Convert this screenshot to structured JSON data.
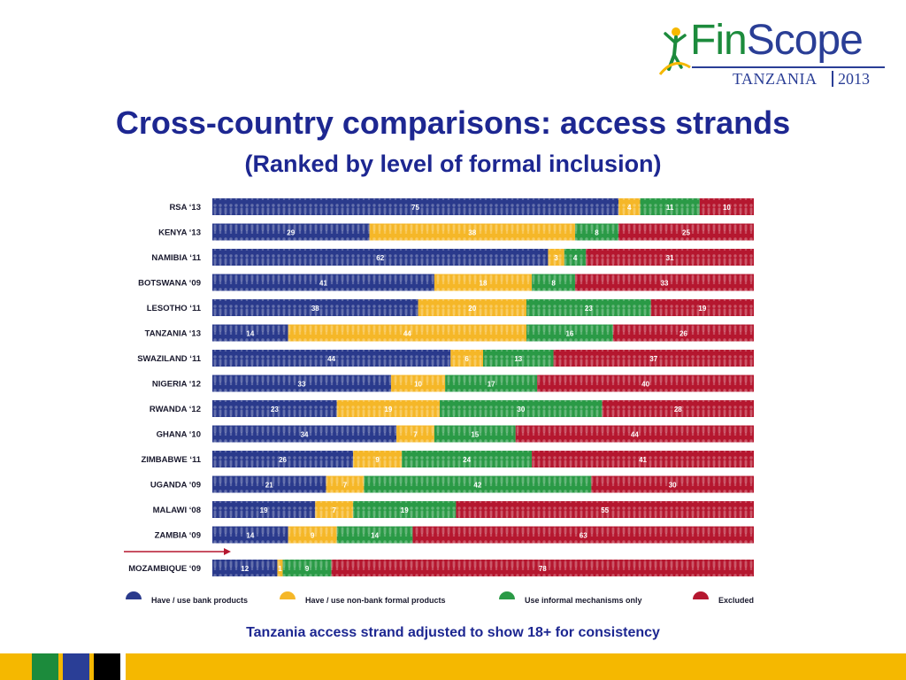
{
  "logo": {
    "word_part1": "Fin",
    "word_part2": "Scope",
    "country": "TANZANIA",
    "year": "2013"
  },
  "title": "Cross-country comparisons: access strands",
  "subtitle": "(Ranked by level of formal inclusion)",
  "note": "Tanzania access strand adjusted to show 18+ for consistency",
  "colors": {
    "bank": "#2a3a8c",
    "nonbank": "#f5b728",
    "informal": "#2a9a46",
    "excluded": "#b5172f",
    "title": "#1d2791",
    "footer_yellow": "#f5b800",
    "footer_green": "#1c8b3c",
    "footer_blue": "#2a3e96",
    "footer_black": "#000000"
  },
  "chart_data": {
    "type": "bar",
    "orientation": "horizontal-stacked-100",
    "categories": [
      "RSA ‘13",
      "KENYA ‘13",
      "NAMIBIA ‘11",
      "BOTSWANA ‘09",
      "LESOTHO ‘11",
      "TANZANIA ‘13",
      "SWAZILAND ‘11",
      "NIGERIA ‘12",
      "RWANDA ‘12",
      "GHANA ‘10",
      "ZIMBABWE ‘11",
      "UGANDA ‘09",
      "MALAWI ‘08",
      "ZAMBIA ‘09",
      "MOZAMBIQUE ‘09"
    ],
    "series": [
      {
        "name": "Have / use bank products",
        "values": [
          75,
          29,
          62,
          41,
          38,
          14,
          44,
          33,
          23,
          34,
          26,
          21,
          19,
          14,
          12
        ]
      },
      {
        "name": "Have / use non-bank formal products",
        "values": [
          4,
          38,
          3,
          18,
          20,
          44,
          6,
          10,
          19,
          7,
          9,
          7,
          7,
          9,
          1
        ]
      },
      {
        "name": "Use informal mechanisms only",
        "values": [
          11,
          8,
          4,
          8,
          23,
          16,
          13,
          17,
          30,
          15,
          24,
          42,
          19,
          14,
          9
        ]
      },
      {
        "name": "Excluded",
        "values": [
          10,
          25,
          31,
          33,
          19,
          26,
          37,
          40,
          28,
          44,
          41,
          30,
          55,
          63,
          78
        ]
      }
    ],
    "xlim": [
      0,
      100
    ],
    "grid": false,
    "legend_position": "bottom",
    "annotations": [
      "separator arrow between ZAMBIA ‘09 and MOZAMBIQUE ‘09"
    ]
  }
}
